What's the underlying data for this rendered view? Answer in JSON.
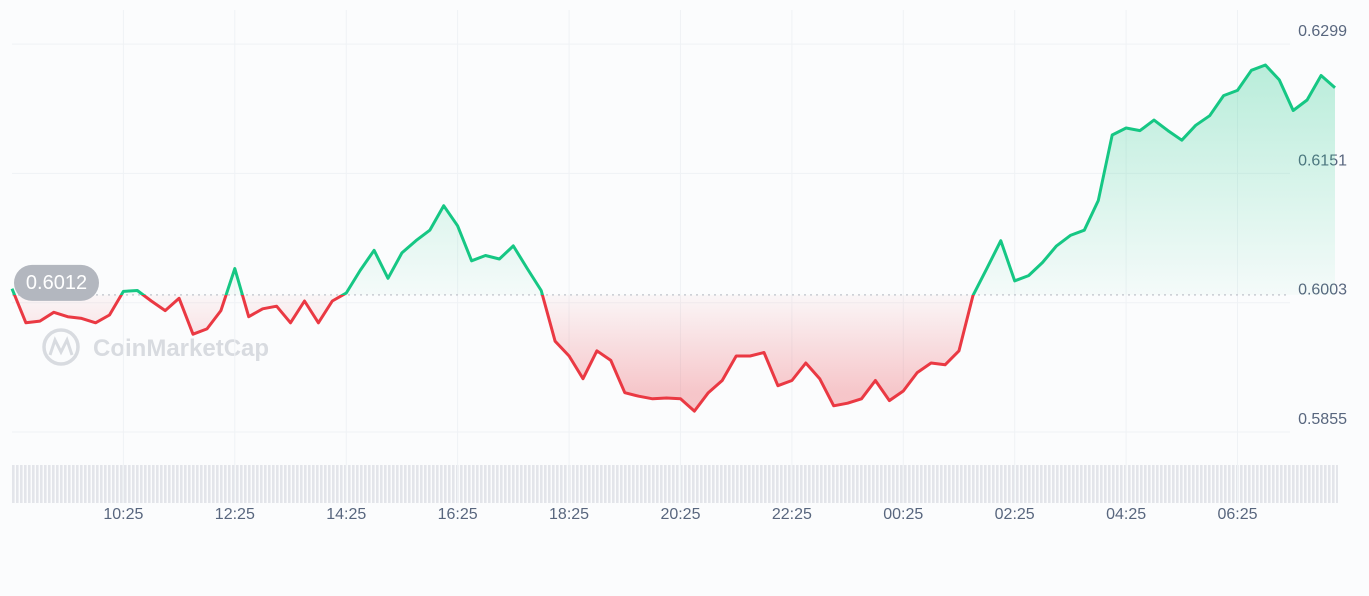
{
  "chart_data": {
    "type": "line",
    "watermark": "CoinMarketCap",
    "baseline": 0.6012,
    "up_color": "#16c784",
    "down_color": "#ea3943",
    "grid": true,
    "ylim": [
      0.5823,
      0.6338
    ],
    "yticks": [
      0.5855,
      0.6003,
      0.6151,
      0.6299
    ],
    "xticks": [
      "10:25",
      "12:25",
      "14:25",
      "16:25",
      "18:25",
      "20:25",
      "22:25",
      "00:25",
      "02:25",
      "04:25",
      "06:25"
    ],
    "x": [
      "08:25",
      "08:40",
      "08:55",
      "09:10",
      "09:25",
      "09:40",
      "09:55",
      "10:10",
      "10:25",
      "10:40",
      "10:55",
      "11:10",
      "11:25",
      "11:40",
      "11:55",
      "12:10",
      "12:25",
      "12:40",
      "12:55",
      "13:10",
      "13:25",
      "13:40",
      "13:55",
      "14:10",
      "14:25",
      "14:40",
      "14:55",
      "15:10",
      "15:25",
      "15:40",
      "15:55",
      "16:10",
      "16:25",
      "16:40",
      "16:55",
      "17:10",
      "17:25",
      "17:40",
      "17:55",
      "18:10",
      "18:25",
      "18:40",
      "18:55",
      "19:10",
      "19:25",
      "19:40",
      "19:55",
      "20:10",
      "20:25",
      "20:40",
      "20:55",
      "21:10",
      "21:25",
      "21:40",
      "21:55",
      "22:10",
      "22:25",
      "22:40",
      "22:55",
      "23:10",
      "23:25",
      "23:40",
      "23:55",
      "00:10",
      "00:25",
      "00:40",
      "00:55",
      "01:10",
      "01:25",
      "01:40",
      "01:55",
      "02:10",
      "02:25",
      "02:40",
      "02:55",
      "03:10",
      "03:25",
      "03:40",
      "03:55",
      "04:10",
      "04:25",
      "04:40",
      "04:55",
      "05:10",
      "05:25",
      "05:40",
      "05:55",
      "06:10",
      "06:25",
      "06:40",
      "06:55",
      "07:10",
      "07:25",
      "07:40",
      "07:55",
      "08:10"
    ],
    "values": [
      0.6019,
      0.598,
      0.5982,
      0.5992,
      0.5987,
      0.5985,
      0.598,
      0.5989,
      0.6016,
      0.6017,
      0.6005,
      0.5994,
      0.6008,
      0.5967,
      0.5973,
      0.5994,
      0.6042,
      0.5987,
      0.5996,
      0.5999,
      0.598,
      0.6005,
      0.598,
      0.6005,
      0.6014,
      0.604,
      0.6063,
      0.6031,
      0.606,
      0.6074,
      0.6086,
      0.6114,
      0.6091,
      0.6051,
      0.6057,
      0.6053,
      0.6068,
      0.6042,
      0.6017,
      0.5959,
      0.5942,
      0.5916,
      0.5948,
      0.5937,
      0.59,
      0.5896,
      0.5893,
      0.5894,
      0.5893,
      0.5879,
      0.59,
      0.5914,
      0.5942,
      0.5942,
      0.5946,
      0.5908,
      0.5914,
      0.5934,
      0.5916,
      0.5885,
      0.5888,
      0.5893,
      0.5914,
      0.5891,
      0.5902,
      0.5923,
      0.5934,
      0.5932,
      0.5948,
      0.6011,
      0.6042,
      0.6074,
      0.6028,
      0.6034,
      0.6049,
      0.6068,
      0.608,
      0.6086,
      0.612,
      0.6195,
      0.6203,
      0.62,
      0.6212,
      0.62,
      0.6189,
      0.6206,
      0.6217,
      0.624,
      0.6246,
      0.6269,
      0.6275,
      0.6258,
      0.6223,
      0.6235,
      0.6263,
      0.6249
    ]
  }
}
